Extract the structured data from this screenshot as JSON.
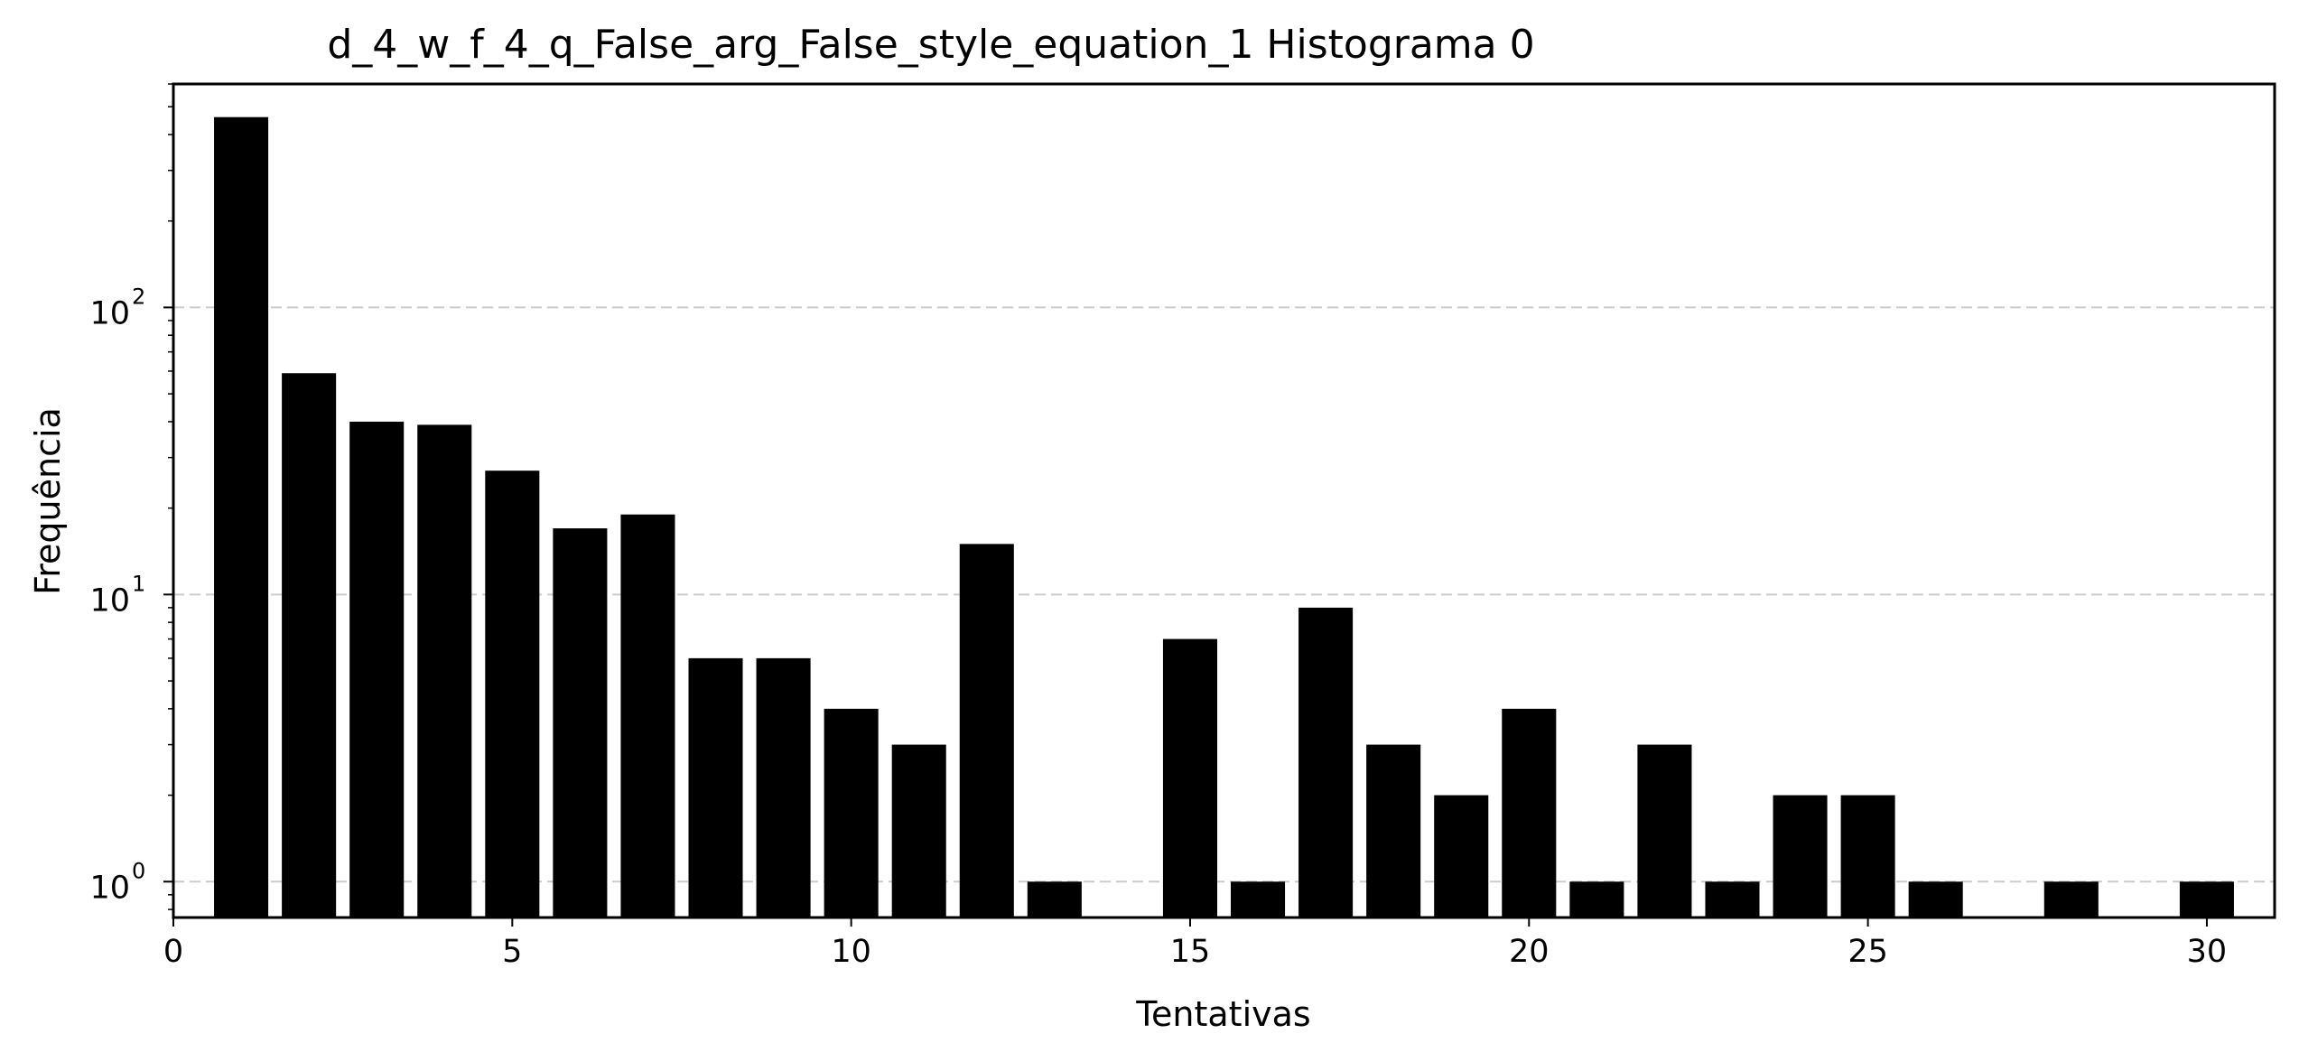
{
  "chart_data": {
    "type": "bar",
    "title": "d_4_w_f_4_q_False_arg_False_style_equation_1 Histograma 0",
    "xlabel": "Tentativas",
    "ylabel": "Frequência",
    "yscale": "log",
    "xlim": [
      0,
      31
    ],
    "ylim": [
      0.75,
      600
    ],
    "grid": "y-major-dashed",
    "x_ticks": [
      0,
      5,
      10,
      15,
      20,
      25,
      30
    ],
    "y_ticks": [
      {
        "value": 1,
        "base": "10",
        "exp": "0"
      },
      {
        "value": 10,
        "base": "10",
        "exp": "1"
      },
      {
        "value": 100,
        "base": "10",
        "exp": "2"
      }
    ],
    "bar_width": 0.8,
    "bar_color": "#000000",
    "x": [
      1,
      2,
      3,
      4,
      5,
      6,
      7,
      8,
      9,
      10,
      11,
      12,
      13,
      15,
      16,
      17,
      18,
      19,
      20,
      21,
      22,
      23,
      24,
      25,
      26,
      28,
      30
    ],
    "values": [
      460,
      59,
      40,
      39,
      27,
      17,
      19,
      6,
      6,
      4,
      3,
      15,
      1,
      7,
      1,
      9,
      3,
      2,
      4,
      1,
      3,
      1,
      2,
      2,
      1,
      1,
      1
    ]
  }
}
